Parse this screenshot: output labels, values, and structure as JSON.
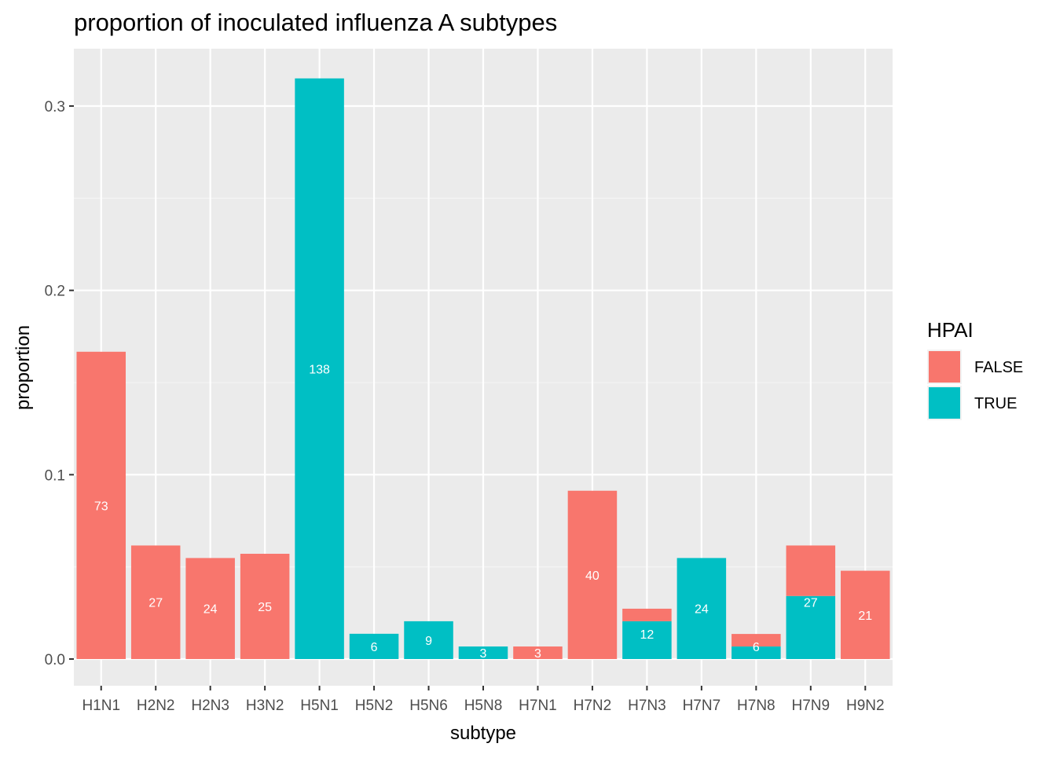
{
  "chart_data": {
    "type": "bar",
    "stacked": true,
    "title": "proportion of inoculated influenza A subtypes",
    "xlabel": "subtype",
    "ylabel": "proportion",
    "ylim": [
      -0.015,
      0.33
    ],
    "yticks": [
      0.0,
      0.1,
      0.2,
      0.3
    ],
    "ytick_labels": [
      "0.0",
      "0.1",
      "0.2",
      "0.3"
    ],
    "grid": true,
    "legend": {
      "title": "HPAI",
      "position": "right",
      "entries": [
        {
          "label": "FALSE",
          "color": "#F8766D"
        },
        {
          "label": "TRUE",
          "color": "#00BFC4"
        }
      ]
    },
    "categories": [
      "H1N1",
      "H2N2",
      "H2N3",
      "H3N2",
      "H5N1",
      "H5N2",
      "H5N6",
      "H5N8",
      "H7N1",
      "H7N2",
      "H7N3",
      "H7N7",
      "H7N8",
      "H7N9",
      "H9N2"
    ],
    "series": [
      {
        "name": "TRUE",
        "color": "#00BFC4",
        "values": [
          0,
          0,
          0,
          0,
          0.315,
          0.0137,
          0.0205,
          0.0068,
          0,
          0,
          0.0205,
          0.0548,
          0.0068,
          0.0342,
          0
        ]
      },
      {
        "name": "FALSE",
        "color": "#F8766D",
        "values": [
          0.1667,
          0.0616,
          0.0548,
          0.0571,
          0,
          0,
          0,
          0,
          0.0068,
          0.0913,
          0.0068,
          0,
          0.0068,
          0.0274,
          0.0479
        ]
      }
    ],
    "bar_labels": [
      {
        "category": "H1N1",
        "text": "73"
      },
      {
        "category": "H2N2",
        "text": "27"
      },
      {
        "category": "H2N3",
        "text": "24"
      },
      {
        "category": "H3N2",
        "text": "25"
      },
      {
        "category": "H5N1",
        "text": "138"
      },
      {
        "category": "H5N2",
        "text": "6"
      },
      {
        "category": "H5N6",
        "text": "9"
      },
      {
        "category": "H5N8",
        "text": "3"
      },
      {
        "category": "H7N1",
        "text": "3"
      },
      {
        "category": "H7N2",
        "text": "40"
      },
      {
        "category": "H7N3",
        "text": "12"
      },
      {
        "category": "H7N7",
        "text": "24"
      },
      {
        "category": "H7N8",
        "text": "6"
      },
      {
        "category": "H7N9",
        "text": "27"
      },
      {
        "category": "H9N2",
        "text": "21"
      }
    ]
  },
  "colors": {
    "panel_background": "#EBEBEB",
    "grid_major": "#FFFFFF",
    "grid_minor": "#F5F5F5",
    "text": "#000000",
    "tick_text": "#4D4D4D"
  }
}
